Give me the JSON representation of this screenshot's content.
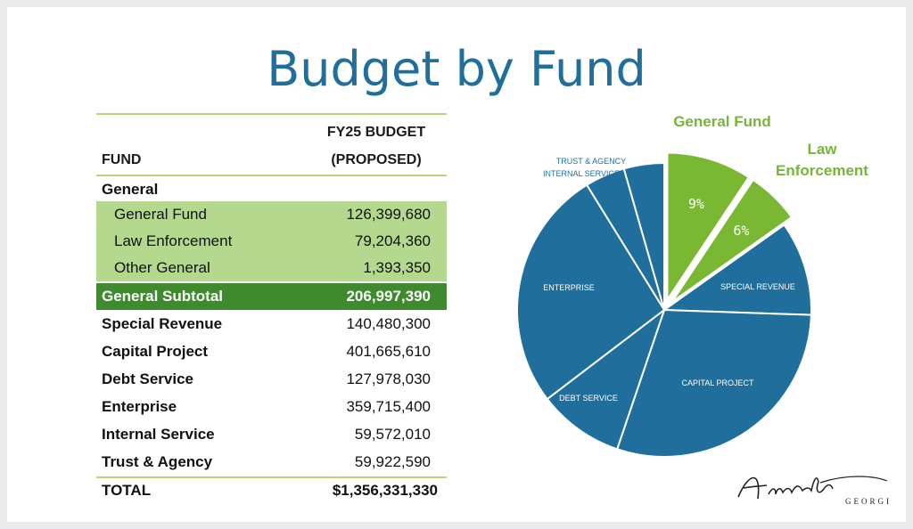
{
  "title": "Budget by Fund",
  "table": {
    "col1_header": "FUND",
    "col2_header_line1": "FY25 BUDGET",
    "col2_header_line2": "(PROPOSED)",
    "group_label": "General",
    "rows": [
      {
        "label": "General Fund",
        "value": "126,399,680"
      },
      {
        "label": "Law Enforcement",
        "value": "79,204,360"
      },
      {
        "label": "Other General",
        "value": "1,393,350"
      },
      {
        "label": "General Subtotal",
        "value": "206,997,390"
      },
      {
        "label": "Special Revenue",
        "value": "140,480,300"
      },
      {
        "label": "Capital Project",
        "value": "401,665,610"
      },
      {
        "label": "Debt Service",
        "value": "127,978,030"
      },
      {
        "label": "Enterprise",
        "value": "359,715,400"
      },
      {
        "label": "Internal Service",
        "value": "59,572,010"
      },
      {
        "label": "Trust & Agency",
        "value": "59,922,590"
      },
      {
        "label": "TOTAL",
        "value": "$1,356,331,330"
      }
    ]
  },
  "chart_data": {
    "type": "pie",
    "slices": [
      {
        "label": "",
        "value": 126399680,
        "color": "#7ab834",
        "pct_label": "9%"
      },
      {
        "label": "",
        "value": 79204360,
        "color": "#7ab834",
        "pct_label": "6%"
      },
      {
        "label": "SPECIAL REVENUE",
        "value": 140480300,
        "color": "#1f6e9c"
      },
      {
        "label": "CAPITAL PROJECT",
        "value": 401665610,
        "color": "#1f6e9c"
      },
      {
        "label": "DEBT SERVICE",
        "value": 127978030,
        "color": "#1f6e9c"
      },
      {
        "label": "ENTERPRISE",
        "value": 359715400,
        "color": "#1f6e9c"
      },
      {
        "label": "INTERNAL SERVICE",
        "value": 59572010,
        "color": "#1f6e9c"
      },
      {
        "label": "TRUST & AGENCY",
        "value": 59922590,
        "color": "#1f6e9c"
      }
    ],
    "callouts": {
      "general_fund": "General Fund",
      "law_line1": "Law",
      "law_line2": "Enforcement"
    }
  },
  "logo": {
    "script": "Augusta",
    "sub": "GEORGIA"
  },
  "colors": {
    "title_blue": "#1f6e9c",
    "green_light": "#b5d88f",
    "green_dark": "#3f8a2e",
    "pie_green": "#7ab834"
  }
}
